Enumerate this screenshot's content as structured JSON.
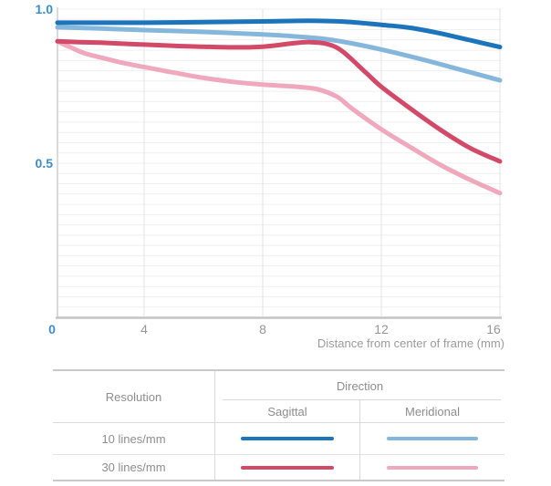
{
  "chart_data": {
    "type": "line",
    "title": "",
    "xlabel": "Distance from center of frame (mm)",
    "ylabel": "",
    "xlim": [
      0,
      16
    ],
    "ylim": [
      0,
      1.0
    ],
    "x_tick_values": [
      0,
      4,
      8,
      12,
      16
    ],
    "y_tick_values": [
      1.0,
      0.5,
      0
    ],
    "grid": true,
    "legend_position": "table-below",
    "series": [
      {
        "name": "10 lines/mm Sagittal",
        "color": "#1c75bb",
        "points": [
          [
            0,
            0.956
          ],
          [
            2,
            0.956
          ],
          [
            4,
            0.956
          ],
          [
            6,
            0.958
          ],
          [
            8,
            0.96
          ],
          [
            9.5,
            0.962
          ],
          [
            10.8,
            0.959
          ],
          [
            12,
            0.949
          ],
          [
            13,
            0.939
          ],
          [
            14,
            0.921
          ],
          [
            15,
            0.899
          ],
          [
            16,
            0.877
          ]
        ]
      },
      {
        "name": "10 lines/mm Meridional",
        "color": "#85b7dc",
        "points": [
          [
            0,
            0.941
          ],
          [
            2,
            0.937
          ],
          [
            4,
            0.932
          ],
          [
            6,
            0.926
          ],
          [
            8,
            0.918
          ],
          [
            9,
            0.912
          ],
          [
            10,
            0.904
          ],
          [
            11,
            0.889
          ],
          [
            12,
            0.869
          ],
          [
            13,
            0.846
          ],
          [
            14,
            0.821
          ],
          [
            15,
            0.795
          ],
          [
            16,
            0.769
          ]
        ]
      },
      {
        "name": "30 lines/mm Sagittal",
        "color": "#d34a68",
        "points": [
          [
            0,
            0.896
          ],
          [
            1,
            0.893
          ],
          [
            2,
            0.891
          ],
          [
            3,
            0.888
          ],
          [
            4,
            0.885
          ],
          [
            5,
            0.881
          ],
          [
            6,
            0.878
          ],
          [
            7,
            0.876
          ],
          [
            8,
            0.878
          ],
          [
            9,
            0.889
          ],
          [
            9.6,
            0.893
          ],
          [
            10.2,
            0.886
          ],
          [
            10.7,
            0.862
          ],
          [
            11.5,
            0.792
          ],
          [
            12,
            0.748
          ],
          [
            13,
            0.676
          ],
          [
            14,
            0.608
          ],
          [
            15,
            0.549
          ],
          [
            16,
            0.506
          ]
        ]
      },
      {
        "name": "30 lines/mm Meridional",
        "color": "#f0a9bc",
        "points": [
          [
            0,
            0.895
          ],
          [
            0.6,
            0.876
          ],
          [
            1.2,
            0.858
          ],
          [
            2,
            0.843
          ],
          [
            3,
            0.826
          ],
          [
            4,
            0.812
          ],
          [
            5,
            0.794
          ],
          [
            6,
            0.777
          ],
          [
            7,
            0.764
          ],
          [
            8,
            0.755
          ],
          [
            9,
            0.749
          ],
          [
            9.8,
            0.741
          ],
          [
            10.5,
            0.716
          ],
          [
            11,
            0.678
          ],
          [
            12,
            0.61
          ],
          [
            13,
            0.551
          ],
          [
            14,
            0.494
          ],
          [
            15,
            0.446
          ],
          [
            16,
            0.403
          ]
        ]
      }
    ]
  },
  "axis": {
    "y_top_label": "1.0",
    "y_mid_label": "0.5",
    "x_origin_label": "0",
    "x_ticks": [
      {
        "label": "4",
        "mm": 4
      },
      {
        "label": "8",
        "mm": 8
      },
      {
        "label": "12",
        "mm": 12
      },
      {
        "label": "16",
        "mm": 16
      }
    ],
    "x_title": "Distance from center of frame (mm)"
  },
  "legend_table": {
    "resolution_header": "Resolution",
    "direction_header": "Direction",
    "sagittal_header": "Sagittal",
    "meridional_header": "Meridional",
    "rows": [
      {
        "resolution": "10 lines/mm",
        "sagittal_color": "#1c75bb",
        "meridional_color": "#85b7dc"
      },
      {
        "resolution": "30 lines/mm",
        "sagittal_color": "#d34a68",
        "meridional_color": "#f0a9bc"
      }
    ]
  },
  "colors": {
    "axis_label_blue": "#3d8dcc",
    "tick_gray": "#969696",
    "grid_horizontal": "#efefef",
    "grid_vertical": "#e3e3e3",
    "axis_line": "#c4c4c4",
    "table_border": "#c9c9c9"
  }
}
